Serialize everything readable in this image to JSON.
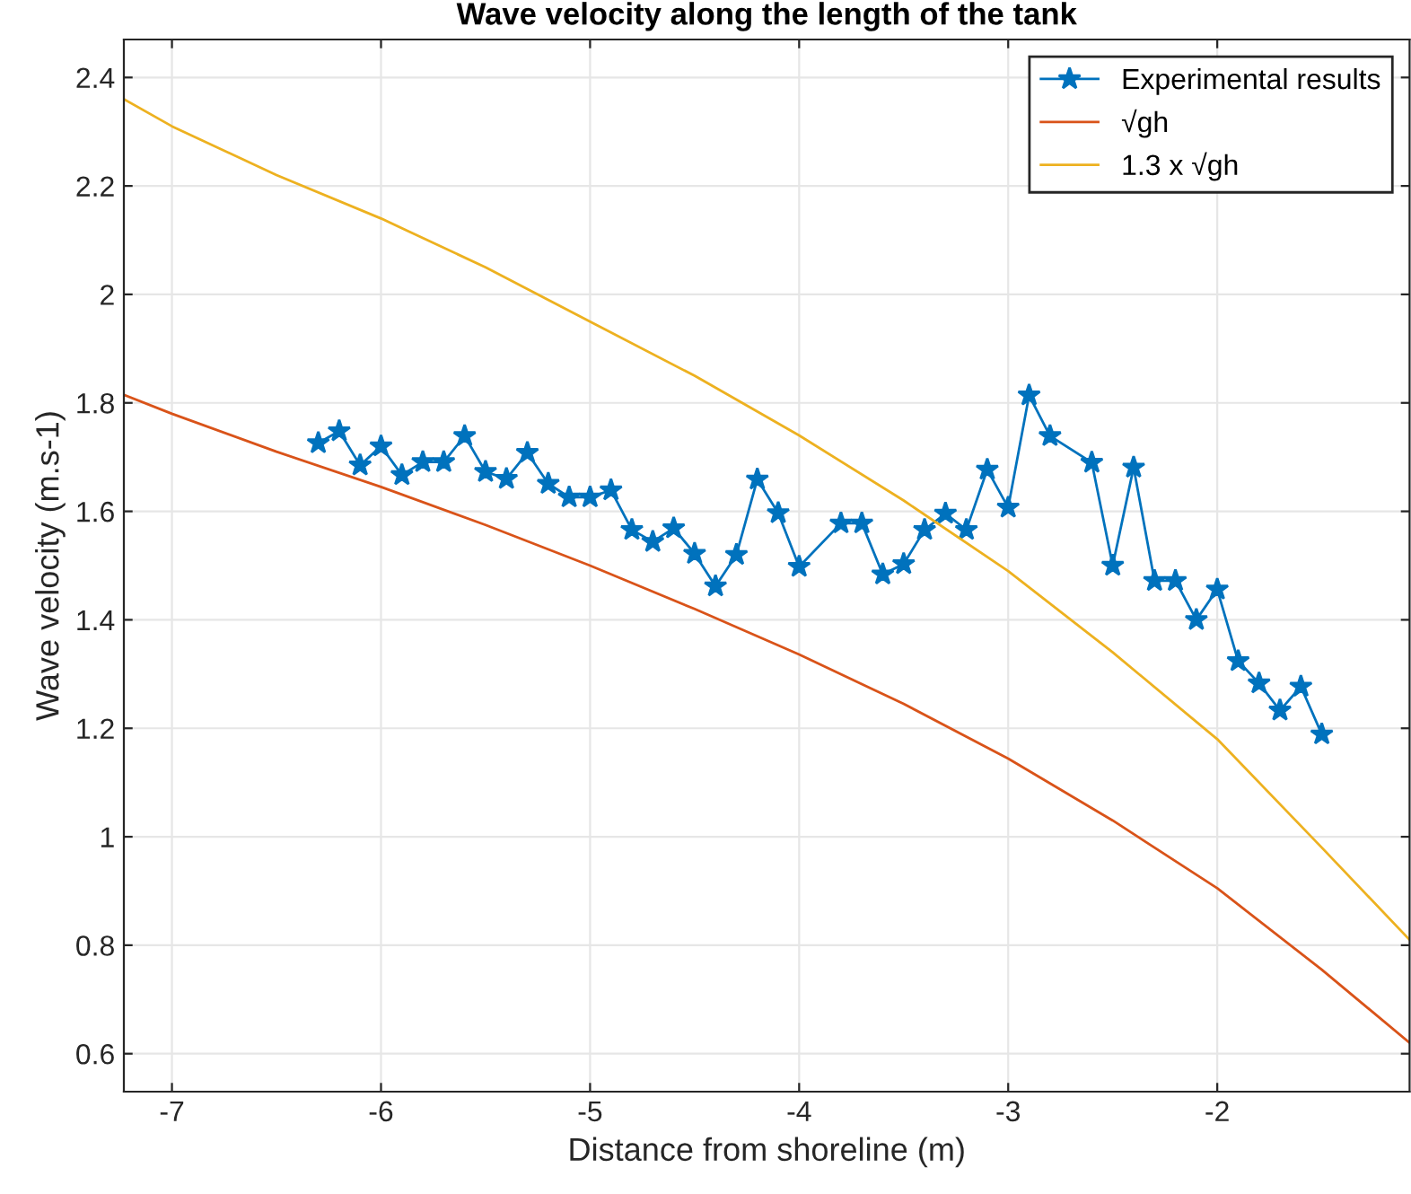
{
  "chart_data": {
    "type": "line",
    "title": "Wave velocity along the length of the tank",
    "xlabel": "Distance from shoreline (m)",
    "ylabel": "Wave velocity (m.s-1)",
    "xlim": [
      -7.23,
      -1.08
    ],
    "xticks": [
      -7,
      -6,
      -5,
      -4,
      -3,
      -2
    ],
    "ylim": [
      0.53,
      2.47
    ],
    "yticks": [
      0.6,
      0.8,
      {
        "value": 1,
        "label": "1"
      },
      1.2,
      1.4,
      1.6,
      1.8,
      {
        "value": 2,
        "label": "2"
      },
      2.2,
      2.4
    ],
    "grid": true,
    "legend": "top right",
    "series": [
      {
        "name": "Experimental results",
        "color": "#0072bd",
        "marker": "star",
        "x": [
          -6.3,
          -6.2,
          -6.1,
          -6.0,
          -5.9,
          -5.8,
          -5.7,
          -5.6,
          -5.5,
          -5.4,
          -5.3,
          -5.2,
          -5.1,
          -5.0,
          -4.9,
          -4.8,
          -4.7,
          -4.6,
          -4.5,
          -4.4,
          -4.3,
          -4.2,
          -4.1,
          -4.0,
          -3.8,
          -3.7,
          -3.6,
          -3.5,
          -3.4,
          -3.3,
          -3.2,
          -3.1,
          -3.0,
          -2.9,
          -2.8,
          -2.6,
          -2.5,
          -2.4,
          -2.3,
          -2.2,
          -2.1,
          -2.0,
          -1.9,
          -1.8,
          -1.7,
          -1.6,
          -1.5
        ],
        "values": [
          1.726,
          1.748,
          1.685,
          1.72,
          1.667,
          1.691,
          1.691,
          1.739,
          1.673,
          1.66,
          1.708,
          1.651,
          1.626,
          1.626,
          1.639,
          1.566,
          1.544,
          1.569,
          1.522,
          1.462,
          1.52,
          1.659,
          1.597,
          1.498,
          1.578,
          1.578,
          1.484,
          1.503,
          1.566,
          1.596,
          1.566,
          1.677,
          1.607,
          1.814,
          1.739,
          1.69,
          1.5,
          1.681,
          1.472,
          1.472,
          1.4,
          1.456,
          1.324,
          1.283,
          1.233,
          1.277,
          1.189
        ]
      },
      {
        "name": "√gh",
        "color": "#d95319",
        "x": [
          -7.23,
          -7,
          -6.5,
          -6,
          -5.5,
          -5,
          -4.5,
          -4,
          -3.5,
          -3,
          -2.5,
          -2,
          -1.5,
          -1.08
        ],
        "values": [
          1.815,
          1.78,
          1.71,
          1.645,
          1.575,
          1.5,
          1.42,
          1.336,
          1.245,
          1.144,
          1.03,
          0.905,
          0.755,
          0.62
        ]
      },
      {
        "name": "1.3 x √gh",
        "color": "#edb120",
        "x": [
          -7.23,
          -7,
          -6.5,
          -6,
          -5.5,
          -5,
          -4.5,
          -4,
          -3.5,
          -3,
          -2.5,
          -2,
          -1.5,
          -1.08
        ],
        "values": [
          2.36,
          2.31,
          2.22,
          2.14,
          2.05,
          1.95,
          1.85,
          1.74,
          1.62,
          1.49,
          1.34,
          1.18,
          0.98,
          0.81
        ]
      }
    ]
  }
}
